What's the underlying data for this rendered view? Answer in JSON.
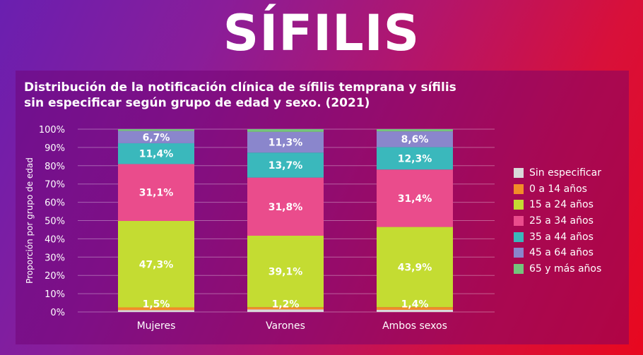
{
  "header": {
    "title": "SÍFILIS"
  },
  "chart_data": {
    "type": "bar",
    "stacked": true,
    "title": "Distribución de la notificación clínica de sífilis temprana y sífilis sin especificar según grupo de edad y sexo. (2021)",
    "ylabel": "Proporción por grupo de edad",
    "xlabel": "",
    "ylim": [
      0,
      100
    ],
    "yticks": [
      "0%",
      "10%",
      "20%",
      "30%",
      "40%",
      "50%",
      "60%",
      "70%",
      "80%",
      "90%",
      "100%"
    ],
    "grid": true,
    "legend_position": "right",
    "categories": [
      "Mujeres",
      "Varones",
      "Ambos sexos"
    ],
    "series": [
      {
        "name": "Sin especificar",
        "color": "#d9d9d9",
        "values": [
          1.0,
          1.4,
          1.2
        ]
      },
      {
        "name": "0 a 14 años",
        "color": "#f28c28",
        "values": [
          1.5,
          1.2,
          1.4
        ]
      },
      {
        "name": "15 a 24 años",
        "color": "#c4dc32",
        "values": [
          47.3,
          39.1,
          43.9
        ]
      },
      {
        "name": "25 a 34 años",
        "color": "#ea4c8c",
        "values": [
          31.1,
          31.8,
          31.4
        ]
      },
      {
        "name": "35 a 44 años",
        "color": "#3ab8bc",
        "values": [
          11.4,
          13.7,
          12.3
        ]
      },
      {
        "name": "45 a 64 años",
        "color": "#8a86cc",
        "values": [
          6.7,
          11.3,
          8.6
        ]
      },
      {
        "name": "65 y más años",
        "color": "#74c47c",
        "values": [
          1.0,
          1.5,
          1.2
        ]
      }
    ],
    "data_labels": [
      {
        "category": 0,
        "series": 1,
        "text": "1,5%"
      },
      {
        "category": 0,
        "series": 2,
        "text": "47,3%"
      },
      {
        "category": 0,
        "series": 3,
        "text": "31,1%"
      },
      {
        "category": 0,
        "series": 4,
        "text": "11,4%"
      },
      {
        "category": 0,
        "series": 5,
        "text": "6,7%"
      },
      {
        "category": 1,
        "series": 1,
        "text": "1,2%"
      },
      {
        "category": 1,
        "series": 2,
        "text": "39,1%"
      },
      {
        "category": 1,
        "series": 3,
        "text": "31,8%"
      },
      {
        "category": 1,
        "series": 4,
        "text": "13,7%"
      },
      {
        "category": 1,
        "series": 5,
        "text": "11,3%"
      },
      {
        "category": 2,
        "series": 1,
        "text": "1,4%"
      },
      {
        "category": 2,
        "series": 2,
        "text": "43,9%"
      },
      {
        "category": 2,
        "series": 3,
        "text": "31,4%"
      },
      {
        "category": 2,
        "series": 4,
        "text": "12,3%"
      },
      {
        "category": 2,
        "series": 5,
        "text": "8,6%"
      }
    ]
  }
}
